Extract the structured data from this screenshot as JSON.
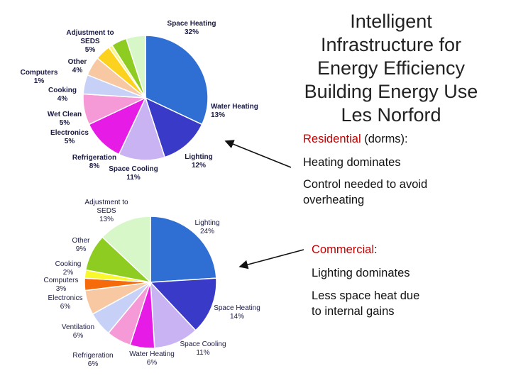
{
  "slide": {
    "title_lines": [
      "Intelligent",
      "Infrastructure for",
      "Energy Efficiency",
      "Building Energy Use",
      "Les Norford"
    ],
    "residential": {
      "label": "Residential",
      "label_suffix": " (dorms):",
      "point1": "Heating dominates",
      "point2_line1": "Control needed to avoid",
      "point2_line2": "overheating"
    },
    "commercial": {
      "label": "Commercial",
      "label_suffix": ":",
      "point1": "Lighting dominates",
      "point2_line1": "Less space heat due",
      "point2_line2": "to internal gains"
    },
    "colors": {
      "highlight": "#c00000",
      "arrow": "#111111"
    }
  },
  "chart_data": [
    {
      "type": "pie",
      "title": "",
      "slices": [
        {
          "name": "Space Heating",
          "pct": "32%",
          "value": 32,
          "color": "#2f6fd3"
        },
        {
          "name": "Water Heating",
          "pct": "13%",
          "value": 13,
          "color": "#3a3ac8"
        },
        {
          "name": "Lighting",
          "pct": "12%",
          "value": 12,
          "color": "#c9b3f2"
        },
        {
          "name": "Space Cooling",
          "pct": "11%",
          "value": 11,
          "color": "#e61be6"
        },
        {
          "name": "Refrigeration",
          "pct": "8%",
          "value": 8,
          "color": "#f59ad6"
        },
        {
          "name": "Electronics",
          "pct": "5%",
          "value": 5,
          "color": "#c7d1f7"
        },
        {
          "name": "Wet Clean",
          "pct": "5%",
          "value": 5,
          "color": "#f8c8a2"
        },
        {
          "name": "Cooking",
          "pct": "4%",
          "value": 4,
          "color": "#fcd21f"
        },
        {
          "name": "Computers",
          "pct": "1%",
          "value": 1,
          "color": "#f8f88a"
        },
        {
          "name": "Other",
          "pct": "4%",
          "value": 4,
          "color": "#8fcc22"
        },
        {
          "name": "Adjustment to SEDS",
          "pct": "5%",
          "value": 5,
          "color": "#d8f7c9"
        }
      ]
    },
    {
      "type": "pie",
      "title": "",
      "slices": [
        {
          "name": "Lighting",
          "pct": "24%",
          "value": 24,
          "color": "#2f6fd3"
        },
        {
          "name": "Space Heating",
          "pct": "14%",
          "value": 14,
          "color": "#3a3ac8"
        },
        {
          "name": "Space Cooling",
          "pct": "11%",
          "value": 11,
          "color": "#c9b3f2"
        },
        {
          "name": "Water Heating",
          "pct": "6%",
          "value": 6,
          "color": "#e61be6"
        },
        {
          "name": "Refrigeration",
          "pct": "6%",
          "value": 6,
          "color": "#f59ad6"
        },
        {
          "name": "Ventilation",
          "pct": "6%",
          "value": 6,
          "color": "#c7d1f7"
        },
        {
          "name": "Electronics",
          "pct": "6%",
          "value": 6,
          "color": "#f8c8a2"
        },
        {
          "name": "Computers",
          "pct": "3%",
          "value": 3,
          "color": "#f56a0a"
        },
        {
          "name": "Cooking",
          "pct": "2%",
          "value": 2,
          "color": "#f8f82a"
        },
        {
          "name": "Other",
          "pct": "9%",
          "value": 9,
          "color": "#8fcc22"
        },
        {
          "name": "Adjustment to SEDS",
          "pct": "13%",
          "value": 13,
          "color": "#d8f7c9"
        }
      ]
    }
  ]
}
